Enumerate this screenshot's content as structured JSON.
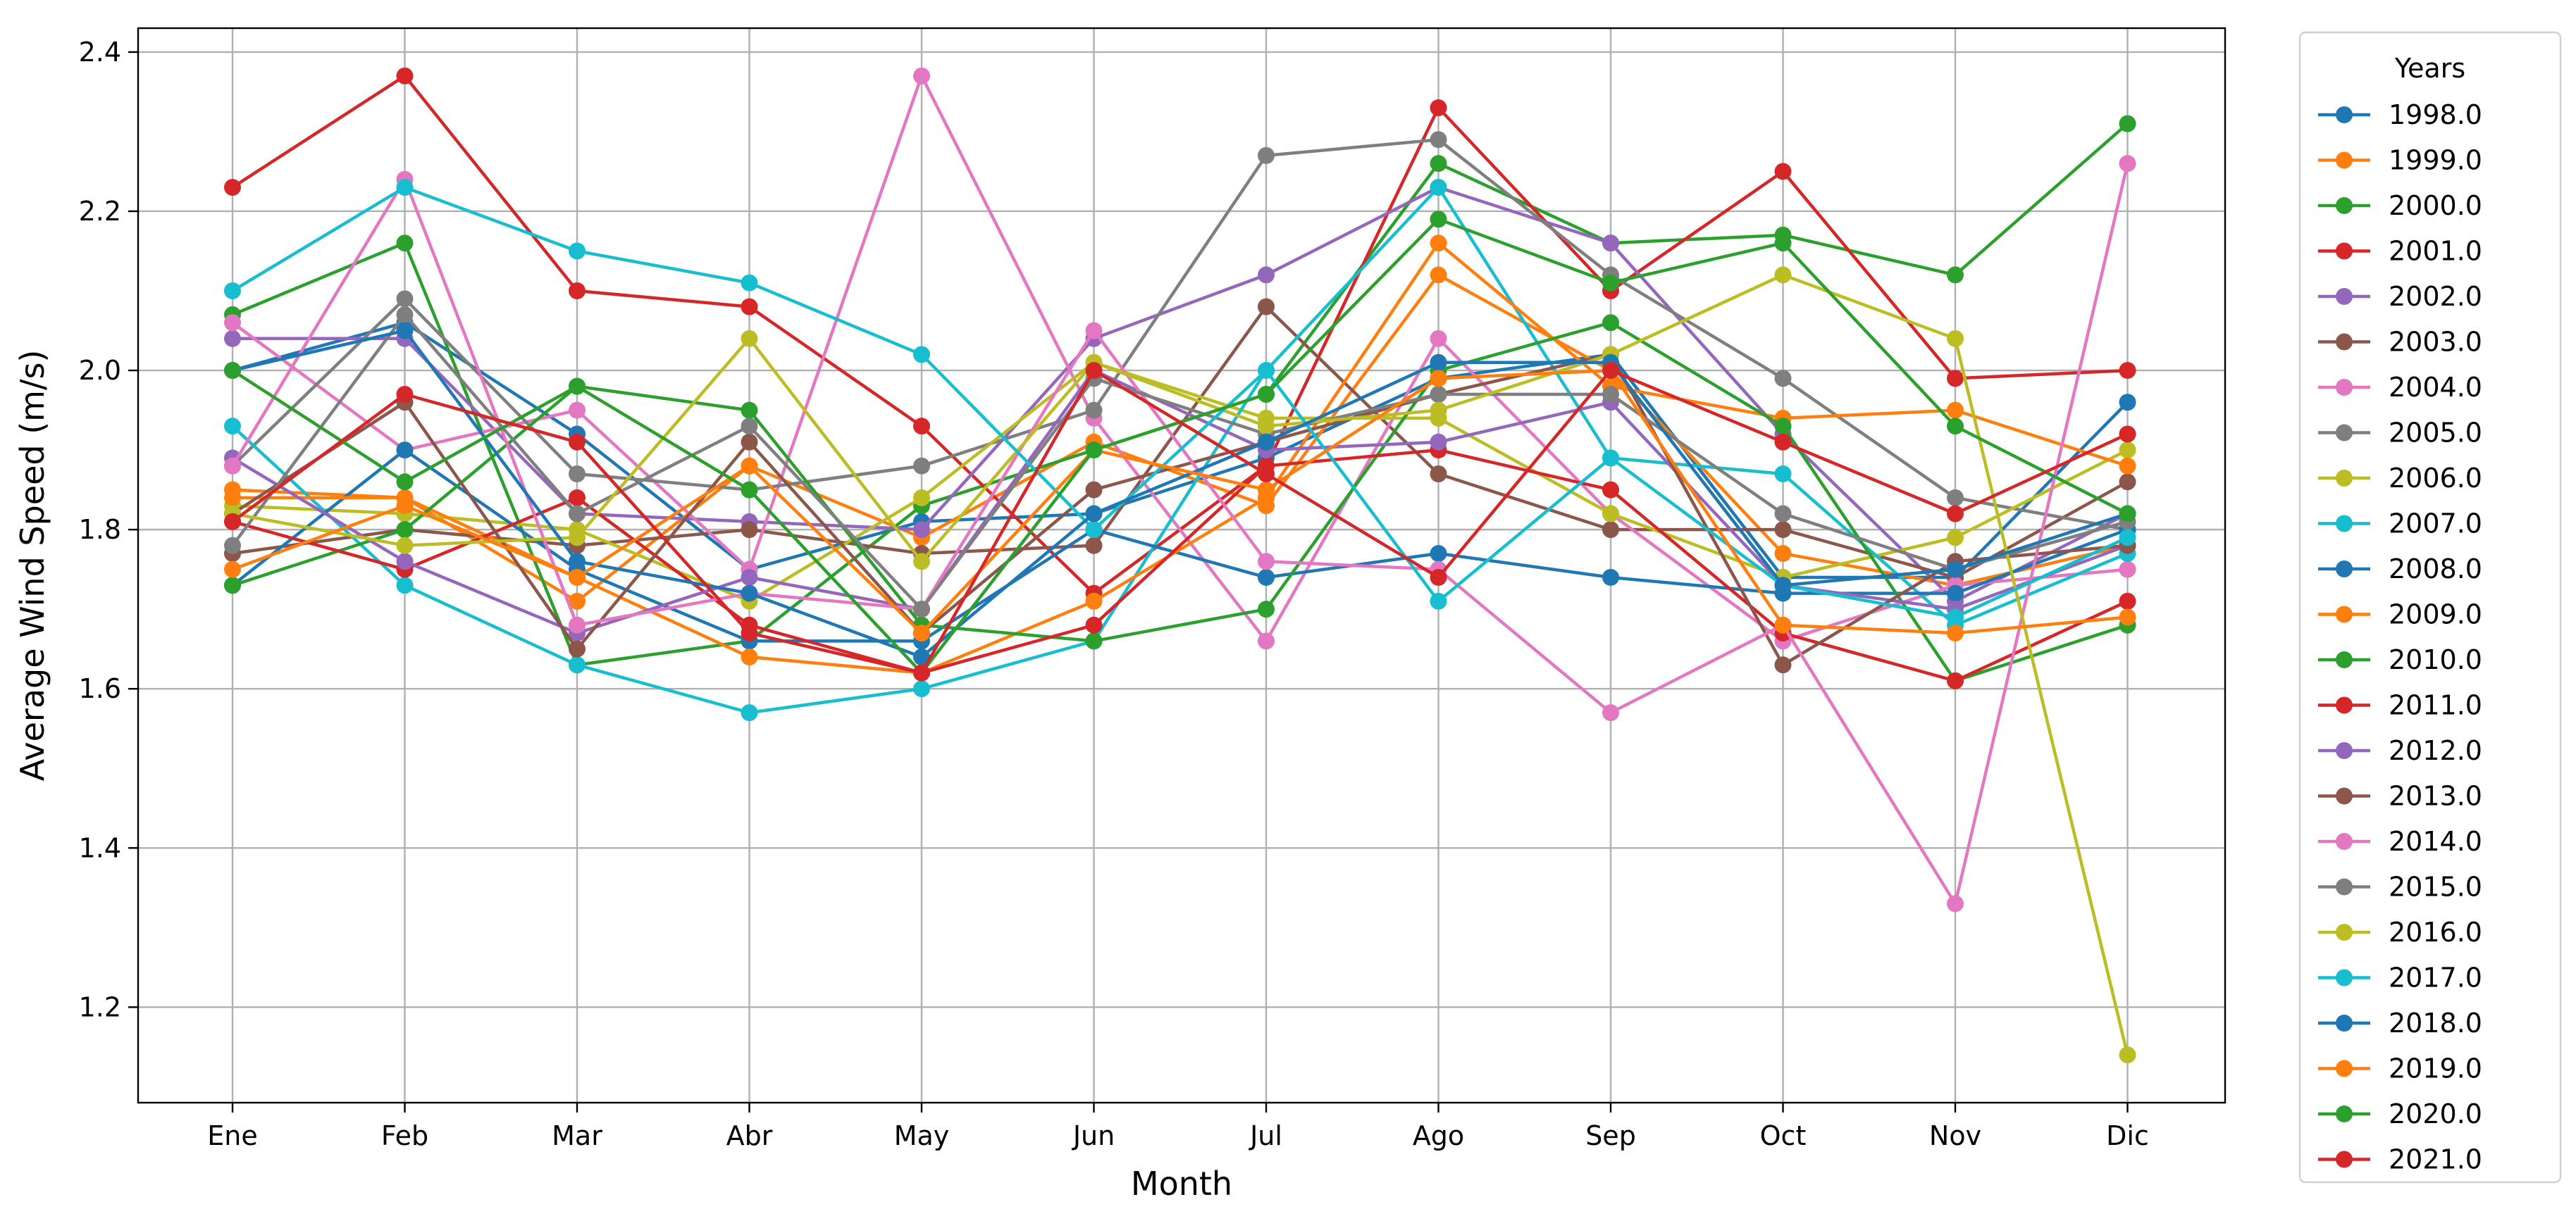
{
  "chart_data": {
    "type": "line",
    "title": "",
    "xlabel": "Month",
    "ylabel": "Average Wind Speed (m/s)",
    "ylim": [
      1.08,
      2.43
    ],
    "yticks": [
      "1.2",
      "1.4",
      "1.6",
      "1.8",
      "2.0",
      "2.2",
      "2.4"
    ],
    "categories": [
      "Ene",
      "Feb",
      "Mar",
      "Abr",
      "May",
      "Jun",
      "Jul",
      "Ago",
      "Sep",
      "Oct",
      "Nov",
      "Dic"
    ],
    "grid": true,
    "legend": {
      "title": "Years",
      "placement": "outside-right"
    },
    "series": [
      {
        "name": "1998.0",
        "color": "#1f77b4",
        "values": [
          2.0,
          2.06,
          1.92,
          1.75,
          1.81,
          1.82,
          1.89,
          1.99,
          2.02,
          1.74,
          1.74,
          1.96
        ]
      },
      {
        "name": "1999.0",
        "color": "#ff7f0e",
        "values": [
          1.85,
          1.84,
          1.71,
          1.88,
          1.79,
          1.91,
          1.83,
          2.12,
          2.0,
          1.77,
          1.73,
          1.78
        ]
      },
      {
        "name": "2000.0",
        "color": "#2ca02c",
        "values": [
          2.07,
          2.16,
          1.63,
          1.66,
          1.83,
          1.9,
          1.97,
          2.26,
          2.16,
          2.17,
          2.12,
          2.31
        ]
      },
      {
        "name": "2001.0",
        "color": "#d62728",
        "values": [
          2.23,
          2.37,
          2.1,
          2.08,
          1.93,
          1.72,
          1.88,
          2.33,
          2.1,
          2.25,
          1.99,
          2.0
        ]
      },
      {
        "name": "2002.0",
        "color": "#9467bd",
        "values": [
          2.04,
          2.04,
          1.82,
          1.81,
          1.8,
          2.04,
          2.12,
          2.23,
          2.16,
          1.92,
          1.71,
          1.82
        ]
      },
      {
        "name": "2003.0",
        "color": "#8c564b",
        "values": [
          1.77,
          1.8,
          1.78,
          1.8,
          1.77,
          1.78,
          2.08,
          1.87,
          1.8,
          1.8,
          1.74,
          1.86
        ]
      },
      {
        "name": "2004.0",
        "color": "#e377c2",
        "values": [
          2.06,
          1.9,
          1.95,
          1.75,
          2.37,
          1.94,
          1.66,
          2.04,
          1.82,
          1.66,
          1.73,
          1.75
        ]
      },
      {
        "name": "2005.0",
        "color": "#7f7f7f",
        "values": [
          1.88,
          2.09,
          1.87,
          1.85,
          1.88,
          1.95,
          2.27,
          2.29,
          2.12,
          1.99,
          1.84,
          1.8
        ]
      },
      {
        "name": "2006.0",
        "color": "#bcbd22",
        "values": [
          1.83,
          1.82,
          1.8,
          1.71,
          1.84,
          2.01,
          1.94,
          1.94,
          1.82,
          1.74,
          1.79,
          1.9
        ]
      },
      {
        "name": "2007.0",
        "color": "#17becf",
        "values": [
          1.93,
          1.73,
          1.63,
          1.57,
          1.6,
          1.66,
          2.0,
          2.23,
          1.89,
          1.87,
          1.68,
          1.77
        ]
      },
      {
        "name": "2008.0",
        "color": "#1f77b4",
        "values": [
          1.73,
          1.9,
          1.75,
          1.66,
          1.66,
          1.8,
          1.74,
          1.77,
          1.74,
          1.72,
          1.72,
          1.8
        ]
      },
      {
        "name": "2009.0",
        "color": "#ff7f0e",
        "values": [
          1.84,
          1.84,
          1.74,
          1.64,
          1.62,
          1.71,
          1.84,
          2.16,
          1.98,
          1.94,
          1.95,
          1.88
        ]
      },
      {
        "name": "2010.0",
        "color": "#2ca02c",
        "values": [
          1.73,
          1.8,
          1.98,
          1.95,
          1.68,
          1.66,
          1.7,
          2.0,
          2.06,
          1.93,
          1.61,
          1.68
        ]
      },
      {
        "name": "2011.0",
        "color": "#d62728",
        "values": [
          1.81,
          1.75,
          1.84,
          1.68,
          1.62,
          1.68,
          1.88,
          1.9,
          1.85,
          1.67,
          1.61,
          1.71
        ]
      },
      {
        "name": "2012.0",
        "color": "#9467bd",
        "values": [
          1.89,
          1.76,
          1.67,
          1.74,
          1.7,
          2.0,
          1.9,
          1.91,
          1.96,
          1.73,
          1.7,
          1.78
        ]
      },
      {
        "name": "2013.0",
        "color": "#8c564b",
        "values": [
          1.82,
          1.96,
          1.65,
          1.91,
          1.67,
          1.85,
          1.91,
          1.97,
          2.02,
          1.63,
          1.76,
          1.78
        ]
      },
      {
        "name": "2014.0",
        "color": "#e377c2",
        "values": [
          1.88,
          2.24,
          1.68,
          1.72,
          1.7,
          2.05,
          1.76,
          1.75,
          1.57,
          1.68,
          1.33,
          2.26
        ]
      },
      {
        "name": "2015.0",
        "color": "#7f7f7f",
        "values": [
          1.78,
          2.07,
          1.82,
          1.93,
          1.7,
          1.99,
          1.92,
          1.97,
          1.97,
          1.82,
          1.75,
          1.81
        ]
      },
      {
        "name": "2016.0",
        "color": "#bcbd22",
        "values": [
          1.82,
          1.78,
          1.79,
          2.04,
          1.76,
          2.01,
          1.93,
          1.95,
          2.02,
          2.12,
          2.04,
          1.14
        ]
      },
      {
        "name": "2017.0",
        "color": "#17becf",
        "values": [
          2.1,
          2.23,
          2.15,
          2.11,
          2.02,
          1.8,
          2.0,
          1.71,
          1.89,
          1.73,
          1.69,
          1.79
        ]
      },
      {
        "name": "2018.0",
        "color": "#1f77b4",
        "values": [
          2.0,
          2.05,
          1.76,
          1.72,
          1.64,
          1.82,
          1.91,
          2.01,
          2.01,
          1.73,
          1.75,
          1.82
        ]
      },
      {
        "name": "2019.0",
        "color": "#ff7f0e",
        "values": [
          1.75,
          1.83,
          1.74,
          1.88,
          1.67,
          1.9,
          1.85,
          1.99,
          2.0,
          1.68,
          1.67,
          1.69
        ]
      },
      {
        "name": "2020.0",
        "color": "#2ca02c",
        "values": [
          2.0,
          1.86,
          1.98,
          1.85,
          1.62,
          1.9,
          1.97,
          2.19,
          2.11,
          2.16,
          1.93,
          1.82
        ]
      },
      {
        "name": "2021.0",
        "color": "#d62728",
        "values": [
          1.81,
          1.97,
          1.91,
          1.67,
          1.62,
          2.0,
          1.87,
          1.74,
          2.0,
          1.91,
          1.82,
          1.92
        ]
      }
    ]
  }
}
